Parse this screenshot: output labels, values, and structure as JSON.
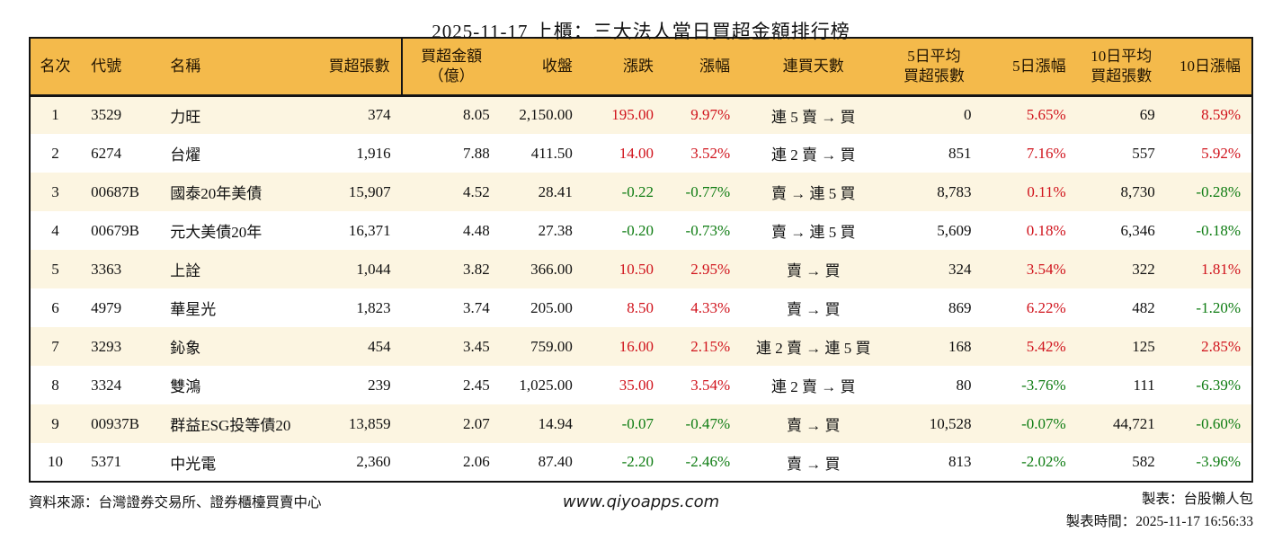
{
  "chart_data": {
    "type": "table",
    "title": "2025-11-17 上櫃：三大法人當日買超金額排行榜",
    "columns": [
      "名次",
      "代號",
      "名稱",
      "買超張數",
      "買超金額\n（億）",
      "收盤",
      "漲跌",
      "漲幅",
      "連買天數",
      "5日平均\n買超張數",
      "5日漲幅",
      "10日平均\n買超張數",
      "10日漲幅"
    ],
    "rows": [
      {
        "rank": "1",
        "code": "3529",
        "name": "力旺",
        "vol": "374",
        "amount": "8.05",
        "close": "2,150.00",
        "change": "195.00",
        "change_dir": "up",
        "pct": "9.97%",
        "pct_dir": "up",
        "streak": "連 5 賣 → 買",
        "avg5": "0",
        "pct5": "5.65%",
        "pct5_dir": "up",
        "avg10": "69",
        "pct10": "8.59%",
        "pct10_dir": "up"
      },
      {
        "rank": "2",
        "code": "6274",
        "name": "台燿",
        "vol": "1,916",
        "amount": "7.88",
        "close": "411.50",
        "change": "14.00",
        "change_dir": "up",
        "pct": "3.52%",
        "pct_dir": "up",
        "streak": "連 2 賣 → 買",
        "avg5": "851",
        "pct5": "7.16%",
        "pct5_dir": "up",
        "avg10": "557",
        "pct10": "5.92%",
        "pct10_dir": "up"
      },
      {
        "rank": "3",
        "code": "00687B",
        "name": "國泰20年美債",
        "vol": "15,907",
        "amount": "4.52",
        "close": "28.41",
        "change": "-0.22",
        "change_dir": "down",
        "pct": "-0.77%",
        "pct_dir": "down",
        "streak": "賣 → 連 5 買",
        "avg5": "8,783",
        "pct5": "0.11%",
        "pct5_dir": "up",
        "avg10": "8,730",
        "pct10": "-0.28%",
        "pct10_dir": "down"
      },
      {
        "rank": "4",
        "code": "00679B",
        "name": "元大美債20年",
        "vol": "16,371",
        "amount": "4.48",
        "close": "27.38",
        "change": "-0.20",
        "change_dir": "down",
        "pct": "-0.73%",
        "pct_dir": "down",
        "streak": "賣 → 連 5 買",
        "avg5": "5,609",
        "pct5": "0.18%",
        "pct5_dir": "up",
        "avg10": "6,346",
        "pct10": "-0.18%",
        "pct10_dir": "down"
      },
      {
        "rank": "5",
        "code": "3363",
        "name": "上詮",
        "vol": "1,044",
        "amount": "3.82",
        "close": "366.00",
        "change": "10.50",
        "change_dir": "up",
        "pct": "2.95%",
        "pct_dir": "up",
        "streak": "賣 → 買",
        "avg5": "324",
        "pct5": "3.54%",
        "pct5_dir": "up",
        "avg10": "322",
        "pct10": "1.81%",
        "pct10_dir": "up"
      },
      {
        "rank": "6",
        "code": "4979",
        "name": "華星光",
        "vol": "1,823",
        "amount": "3.74",
        "close": "205.00",
        "change": "8.50",
        "change_dir": "up",
        "pct": "4.33%",
        "pct_dir": "up",
        "streak": "賣 → 買",
        "avg5": "869",
        "pct5": "6.22%",
        "pct5_dir": "up",
        "avg10": "482",
        "pct10": "-1.20%",
        "pct10_dir": "down"
      },
      {
        "rank": "7",
        "code": "3293",
        "name": "鈊象",
        "vol": "454",
        "amount": "3.45",
        "close": "759.00",
        "change": "16.00",
        "change_dir": "up",
        "pct": "2.15%",
        "pct_dir": "up",
        "streak": "連 2 賣 → 連 5 買",
        "avg5": "168",
        "pct5": "5.42%",
        "pct5_dir": "up",
        "avg10": "125",
        "pct10": "2.85%",
        "pct10_dir": "up"
      },
      {
        "rank": "8",
        "code": "3324",
        "name": "雙鴻",
        "vol": "239",
        "amount": "2.45",
        "close": "1,025.00",
        "change": "35.00",
        "change_dir": "up",
        "pct": "3.54%",
        "pct_dir": "up",
        "streak": "連 2 賣 → 買",
        "avg5": "80",
        "pct5": "-3.76%",
        "pct5_dir": "down",
        "avg10": "111",
        "pct10": "-6.39%",
        "pct10_dir": "down"
      },
      {
        "rank": "9",
        "code": "00937B",
        "name": "群益ESG投等債20",
        "vol": "13,859",
        "amount": "2.07",
        "close": "14.94",
        "change": "-0.07",
        "change_dir": "down",
        "pct": "-0.47%",
        "pct_dir": "down",
        "streak": "賣 → 買",
        "avg5": "10,528",
        "pct5": "-0.07%",
        "pct5_dir": "down",
        "avg10": "44,721",
        "pct10": "-0.60%",
        "pct10_dir": "down"
      },
      {
        "rank": "10",
        "code": "5371",
        "name": "中光電",
        "vol": "2,360",
        "amount": "2.06",
        "close": "87.40",
        "change": "-2.20",
        "change_dir": "down",
        "pct": "-2.46%",
        "pct_dir": "down",
        "streak": "賣 → 買",
        "avg5": "813",
        "pct5": "-2.02%",
        "pct5_dir": "down",
        "avg10": "582",
        "pct10": "-3.96%",
        "pct10_dir": "down"
      }
    ]
  },
  "footer": {
    "source": "資料來源：台灣證券交易所、證券櫃檯買賣中心",
    "website": "www.qiyoapps.com",
    "author": "製表：台股懶人包",
    "generated_at": "製表時間：2025-11-17 16:56:33"
  },
  "colors": {
    "up_red": "#d0121b",
    "down_green": "#0e7c12",
    "header_bg": "#f4ba4b",
    "row_stripe": "#fcf5e1",
    "table_border": "#141414"
  }
}
